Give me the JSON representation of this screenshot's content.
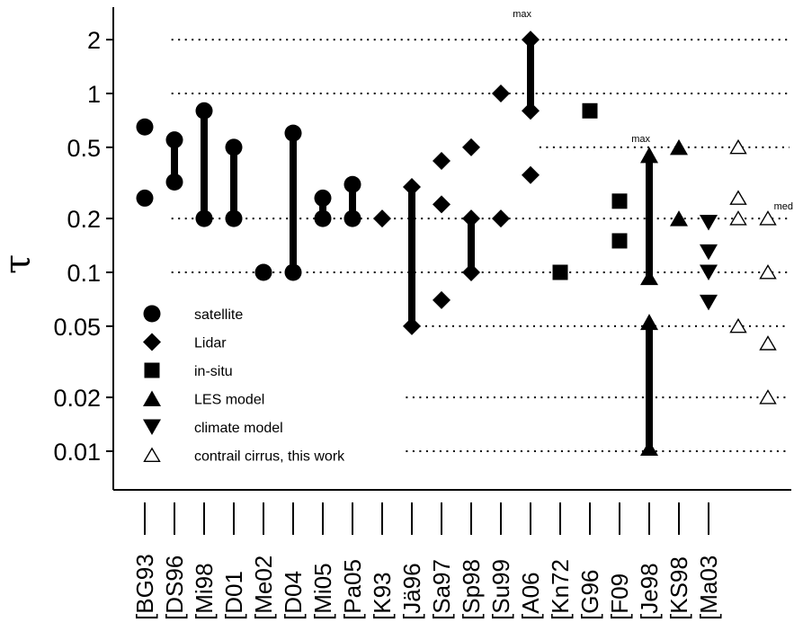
{
  "chart_data": {
    "type": "scatter",
    "title": "",
    "xlabel": "",
    "ylabel": "τ",
    "y_scale": "log",
    "ylim": [
      0.005,
      3.3
    ],
    "yticks": [
      {
        "value": 2,
        "label": "2"
      },
      {
        "value": 1,
        "label": "1"
      },
      {
        "value": 0.5,
        "label": "0.5"
      },
      {
        "value": 0.2,
        "label": "0.2"
      },
      {
        "value": 0.1,
        "label": "0.1"
      },
      {
        "value": 0.05,
        "label": "0.05"
      },
      {
        "value": 0.02,
        "label": "0.02"
      },
      {
        "value": 0.01,
        "label": "0.01"
      }
    ],
    "categories": [
      "[BG93",
      "[DS96",
      "[Mi98",
      "[D01",
      "[Me02",
      "[D04",
      "[Mi05",
      "[Pa05",
      "[K93",
      "[Jä96",
      "[Sa97",
      "[Sp98",
      "[Su99",
      "[A06",
      "[Kn72",
      "[G96",
      "[F09",
      "[Je98",
      "[KS98",
      "[Ma03"
    ],
    "legend": {
      "placement": "bottom-left",
      "items": [
        {
          "marker": "circle",
          "label": "satellite"
        },
        {
          "marker": "diamond",
          "label": "Lidar"
        },
        {
          "marker": "square",
          "label": "in-situ"
        },
        {
          "marker": "triangle-up",
          "label": "LES model"
        },
        {
          "marker": "triangle-down",
          "label": "climate model"
        },
        {
          "marker": "triangle-up-open",
          "label": "contrail cirrus, this work"
        }
      ]
    },
    "points": [
      {
        "x": 0,
        "y": 0.65,
        "marker": "circle"
      },
      {
        "x": 0,
        "y": 0.26,
        "marker": "circle"
      },
      {
        "x": 1,
        "y": 0.55,
        "marker": "circle"
      },
      {
        "x": 1,
        "y": 0.32,
        "marker": "circle"
      },
      {
        "x": 2,
        "y": 0.8,
        "marker": "circle"
      },
      {
        "x": 2,
        "y": 0.2,
        "marker": "circle"
      },
      {
        "x": 3,
        "y": 0.5,
        "marker": "circle"
      },
      {
        "x": 3,
        "y": 0.2,
        "marker": "circle"
      },
      {
        "x": 4,
        "y": 0.1,
        "marker": "circle"
      },
      {
        "x": 5,
        "y": 0.6,
        "marker": "circle"
      },
      {
        "x": 5,
        "y": 0.1,
        "marker": "circle"
      },
      {
        "x": 6,
        "y": 0.26,
        "marker": "circle"
      },
      {
        "x": 6,
        "y": 0.2,
        "marker": "circle"
      },
      {
        "x": 7,
        "y": 0.31,
        "marker": "circle"
      },
      {
        "x": 7,
        "y": 0.2,
        "marker": "circle"
      },
      {
        "x": 8,
        "y": 0.2,
        "marker": "diamond"
      },
      {
        "x": 9,
        "y": 0.3,
        "marker": "diamond"
      },
      {
        "x": 9,
        "y": 0.05,
        "marker": "diamond"
      },
      {
        "x": 10,
        "y": 0.42,
        "marker": "diamond"
      },
      {
        "x": 10,
        "y": 0.24,
        "marker": "diamond"
      },
      {
        "x": 10,
        "y": 0.07,
        "marker": "diamond"
      },
      {
        "x": 11,
        "y": 0.5,
        "marker": "diamond"
      },
      {
        "x": 11,
        "y": 0.2,
        "marker": "diamond"
      },
      {
        "x": 11,
        "y": 0.1,
        "marker": "diamond"
      },
      {
        "x": 12,
        "y": 1.0,
        "marker": "diamond"
      },
      {
        "x": 12,
        "y": 0.2,
        "marker": "diamond"
      },
      {
        "x": 13,
        "y": 2.0,
        "marker": "diamond"
      },
      {
        "x": 13,
        "y": 0.8,
        "marker": "diamond"
      },
      {
        "x": 13,
        "y": 0.35,
        "marker": "diamond"
      },
      {
        "x": 14,
        "y": 0.1,
        "marker": "square"
      },
      {
        "x": 15,
        "y": 0.8,
        "marker": "square"
      },
      {
        "x": 16,
        "y": 0.25,
        "marker": "square"
      },
      {
        "x": 16,
        "y": 0.15,
        "marker": "square"
      },
      {
        "x": 18,
        "y": 0.5,
        "marker": "triangle-up"
      },
      {
        "x": 18,
        "y": 0.2,
        "marker": "triangle-up"
      },
      {
        "x": 19,
        "y": 0.19,
        "marker": "triangle-down"
      },
      {
        "x": 19,
        "y": 0.13,
        "marker": "triangle-down"
      },
      {
        "x": 19,
        "y": 0.1,
        "marker": "triangle-down"
      },
      {
        "x": 19,
        "y": 0.068,
        "marker": "triangle-down"
      },
      {
        "x": 20,
        "y": 0.5,
        "marker": "triangle-up-open"
      },
      {
        "x": 20,
        "y": 0.26,
        "marker": "triangle-up-open"
      },
      {
        "x": 20,
        "y": 0.2,
        "marker": "triangle-up-open"
      },
      {
        "x": 20,
        "y": 0.05,
        "marker": "triangle-up-open"
      },
      {
        "x": 21,
        "y": 0.2,
        "marker": "triangle-up-open"
      },
      {
        "x": 21,
        "y": 0.1,
        "marker": "triangle-up-open"
      },
      {
        "x": 21,
        "y": 0.04,
        "marker": "triangle-up-open"
      },
      {
        "x": 21,
        "y": 0.02,
        "marker": "triangle-up-open"
      }
    ],
    "range_bars": [
      {
        "x": 1,
        "low": 0.32,
        "high": 0.55
      },
      {
        "x": 2,
        "low": 0.2,
        "high": 0.8
      },
      {
        "x": 3,
        "low": 0.2,
        "high": 0.5
      },
      {
        "x": 5,
        "low": 0.1,
        "high": 0.6
      },
      {
        "x": 6,
        "low": 0.2,
        "high": 0.26
      },
      {
        "x": 7,
        "low": 0.2,
        "high": 0.31
      },
      {
        "x": 9,
        "low": 0.05,
        "high": 0.3
      },
      {
        "x": 11,
        "low": 0.1,
        "high": 0.2
      },
      {
        "x": 13,
        "low": 0.8,
        "high": 2.0
      }
    ],
    "arrow_ranges": [
      {
        "x": 17,
        "low": 0.09,
        "high": 0.48
      },
      {
        "x": 17,
        "low": 0.01,
        "high": 0.056
      }
    ],
    "annotations": [
      {
        "x": 12.4,
        "y": 2.8,
        "text": "max"
      },
      {
        "x": 16.4,
        "y": 0.56,
        "text": "max"
      },
      {
        "x": 21.2,
        "y": 0.235,
        "text": "med"
      }
    ],
    "gridlines": [
      {
        "y": 2,
        "x_start": 0.9
      },
      {
        "y": 1,
        "x_start": 0.9
      },
      {
        "y": 0.5,
        "x_start": 13.3
      },
      {
        "y": 0.2,
        "x_start": 0.9
      },
      {
        "y": 0.1,
        "x_start": 0.9
      },
      {
        "y": 0.05,
        "x_start": 9.0
      },
      {
        "y": 0.02,
        "x_start": 8.8
      },
      {
        "y": 0.01,
        "x_start": 8.8
      }
    ]
  }
}
